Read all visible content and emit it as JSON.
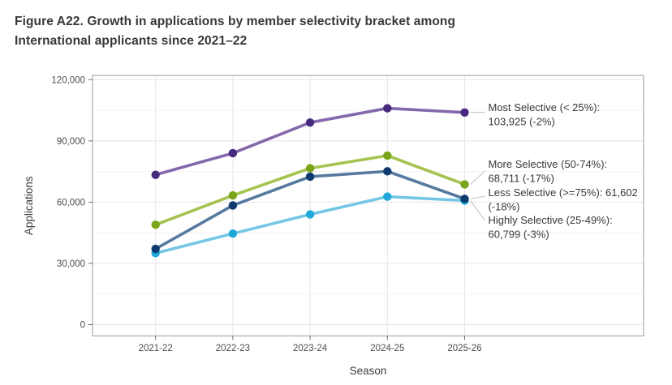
{
  "figure": {
    "title_line1": "Figure A22. Growth in applications by member selectivity bracket among",
    "title_line2": "International applicants since 2021–22"
  },
  "chart_data": {
    "type": "line",
    "title": "Figure A22. Growth in applications by member selectivity bracket among International applicants since 2021–22",
    "xlabel": "Season",
    "ylabel": "Applications",
    "categories": [
      "2021-22",
      "2022-23",
      "2023-24",
      "2024-25",
      "2025-26"
    ],
    "ylim": [
      0,
      120000
    ],
    "yticks": [
      0,
      30000,
      60000,
      90000,
      120000
    ],
    "ytick_labels": [
      "0",
      "30,000",
      "60,000",
      "90,000",
      "120,000"
    ],
    "yticks_minor": [
      15000,
      45000,
      75000,
      105000
    ],
    "grid": {
      "horizontal_major": true,
      "horizontal_minor": true,
      "vertical_major": true,
      "vertical_minor": false
    },
    "legend": "direct labels at right of last points",
    "panel_border_color": "#9a9a9a",
    "gridline_major_color": "#e4e4e4",
    "gridline_minor_color": "#f3f3f3",
    "leader_line_color": "#c4c4c4",
    "series": [
      {
        "name": "Most Selective (< 25%)",
        "values": [
          73400,
          84000,
          99000,
          106000,
          103925
        ],
        "final_value": "103,925",
        "change": "-2%",
        "annotation_lines": [
          "Most Selective (< 25%):",
          "103,925 (-2%)"
        ],
        "line_color": "#8468ab",
        "point_color": "#472a7d"
      },
      {
        "name": "More Selective (50-74%)",
        "values": [
          48900,
          63300,
          76600,
          82800,
          68711
        ],
        "final_value": "68,711",
        "change": "-17%",
        "annotation_lines": [
          "More Selective (50-74%):",
          "68,711 (-17%)"
        ],
        "line_color": "#a6c24f",
        "point_color": "#7aa51a"
      },
      {
        "name": "Less Selective (>=75%)",
        "values": [
          37100,
          58400,
          72500,
          75100,
          61602
        ],
        "final_value": "61,602",
        "change": "-18%",
        "annotation_lines": [
          "Less Selective (>=75%): 61,602",
          "(-18%)"
        ],
        "line_color": "#56799f",
        "point_color": "#0f3a70"
      },
      {
        "name": "Highly Selective (25-49%)",
        "values": [
          35000,
          44600,
          54000,
          62700,
          60799
        ],
        "final_value": "60,799",
        "change": "-3%",
        "annotation_lines": [
          "Highly Selective (25-49%):",
          "60,799 (-3%)"
        ],
        "line_color": "#74c7e4",
        "point_color": "#1ea9da"
      }
    ]
  }
}
